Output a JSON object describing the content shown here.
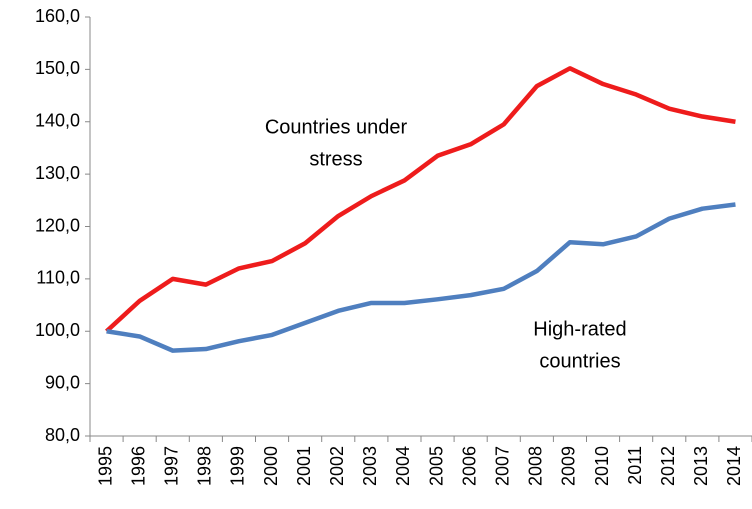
{
  "chart_data": {
    "type": "line",
    "categories": [
      "1995",
      "1996",
      "1997",
      "1998",
      "1999",
      "2000",
      "2001",
      "2002",
      "2003",
      "2004",
      "2005",
      "2006",
      "2007",
      "2008",
      "2009",
      "2010",
      "2011",
      "2012",
      "2013",
      "2014"
    ],
    "series": [
      {
        "name": "Countries under stress",
        "color": "#ee1c1c",
        "values": [
          100,
          105.8,
          110,
          108.9,
          112,
          113.4,
          116.8,
          122,
          125.8,
          128.8,
          133.5,
          135.7,
          139.5,
          146.8,
          150.2,
          147.2,
          145.2,
          142.5,
          141,
          140
        ]
      },
      {
        "name": "High-rated countries",
        "color": "#4f7fbf",
        "values": [
          100,
          99,
          96.3,
          96.6,
          98.1,
          99.3,
          101.6,
          103.9,
          105.4,
          105.4,
          106.1,
          106.9,
          108.1,
          111.5,
          117,
          116.6,
          118.1,
          121.5,
          123.4,
          124.2
        ]
      }
    ],
    "annotations": [
      {
        "lines": [
          "Countries under",
          "stress"
        ]
      },
      {
        "lines": [
          "High-rated",
          "countries"
        ]
      }
    ],
    "ylim": [
      80,
      160
    ],
    "yticks": [
      {
        "value": 80,
        "label": "80,0"
      },
      {
        "value": 90,
        "label": "90,0"
      },
      {
        "value": 100,
        "label": "100,0"
      },
      {
        "value": 110,
        "label": "110,0"
      },
      {
        "value": 120,
        "label": "120,0"
      },
      {
        "value": 130,
        "label": "130,0"
      },
      {
        "value": 140,
        "label": "140,0"
      },
      {
        "value": 150,
        "label": "150,0"
      },
      {
        "value": 160,
        "label": "160,0"
      }
    ]
  }
}
